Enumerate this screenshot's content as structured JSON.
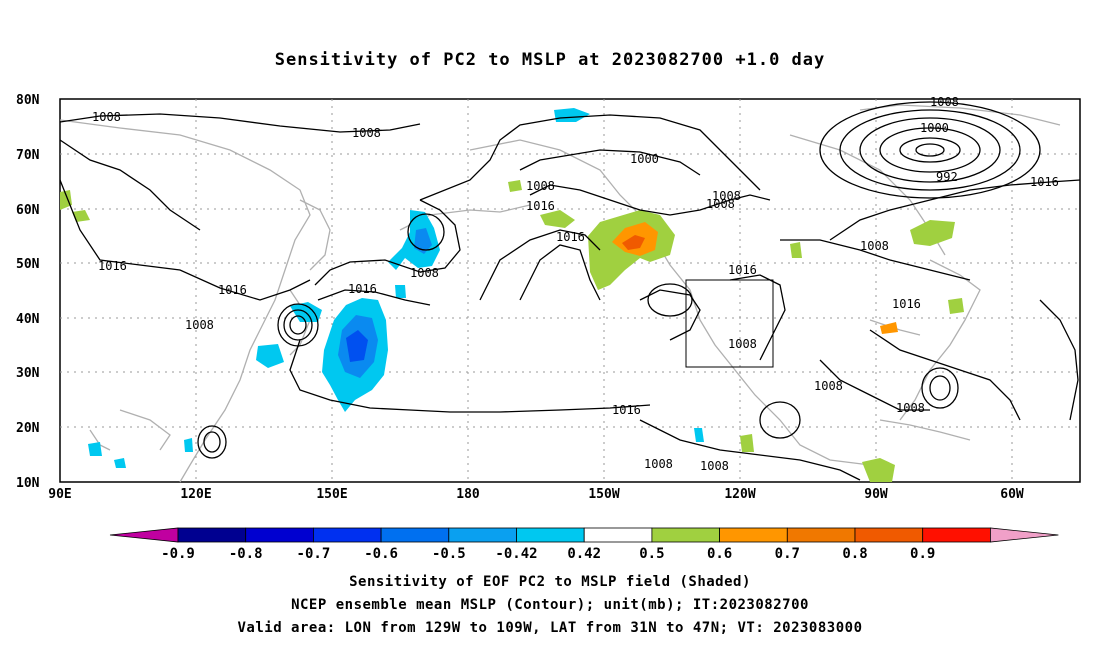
{
  "title": "Sensitivity of PC2 to MSLP at 2023082700 +1.0 day",
  "map": {
    "lat_labels": [
      "80N",
      "70N",
      "60N",
      "50N",
      "40N",
      "30N",
      "20N",
      "10N"
    ],
    "lon_labels": [
      "90E",
      "120E",
      "150E",
      "180",
      "150W",
      "120W",
      "90W",
      "60W"
    ],
    "valid_box": {
      "lon_from": "129W",
      "lon_to": "109W",
      "lat_from": "31N",
      "lat_to": "47N"
    },
    "contour_labels": [
      "1008",
      "1008",
      "1008",
      "1016",
      "1016",
      "1008",
      "1000",
      "1008",
      "1016",
      "1016",
      "1008",
      "1008",
      "1016",
      "1016",
      "1008",
      "1016",
      "1008",
      "1008",
      "1000",
      "992",
      "1016",
      "1008",
      "1016",
      "1008",
      "1008",
      "1008"
    ],
    "shading_colors": {
      "light_blue": "#00c8f0",
      "mid_blue": "#0a8af0",
      "deep_blue": "#0050f0",
      "green": "#a0d040",
      "orange": "#ff9600",
      "dark_orange": "#f05a00",
      "coast": "#b0b0b0"
    }
  },
  "colorbar": {
    "labels": [
      "-0.9",
      "-0.8",
      "-0.7",
      "-0.6",
      "-0.5",
      "-0.42",
      "0.42",
      "0.5",
      "0.6",
      "0.7",
      "0.8",
      "0.9"
    ],
    "colors": [
      "#000090",
      "#0000d0",
      "#0030f0",
      "#0070f0",
      "#0aa0f0",
      "#00c8f0",
      "#ffffff",
      "#a0d040",
      "#ff9600",
      "#f07800",
      "#f05a00",
      "#ff1000",
      "#ff0000"
    ],
    "left_arrow_color": "#c000a0",
    "right_arrow_color": "#f0a0c8"
  },
  "captions": [
    "Sensitivity of EOF PC2 to MSLP field (Shaded)",
    "NCEP ensemble mean MSLP (Contour); unit(mb); IT:2023082700",
    "Valid area: LON from 129W to 109W, LAT from 31N to 47N; VT: 2023083000"
  ]
}
